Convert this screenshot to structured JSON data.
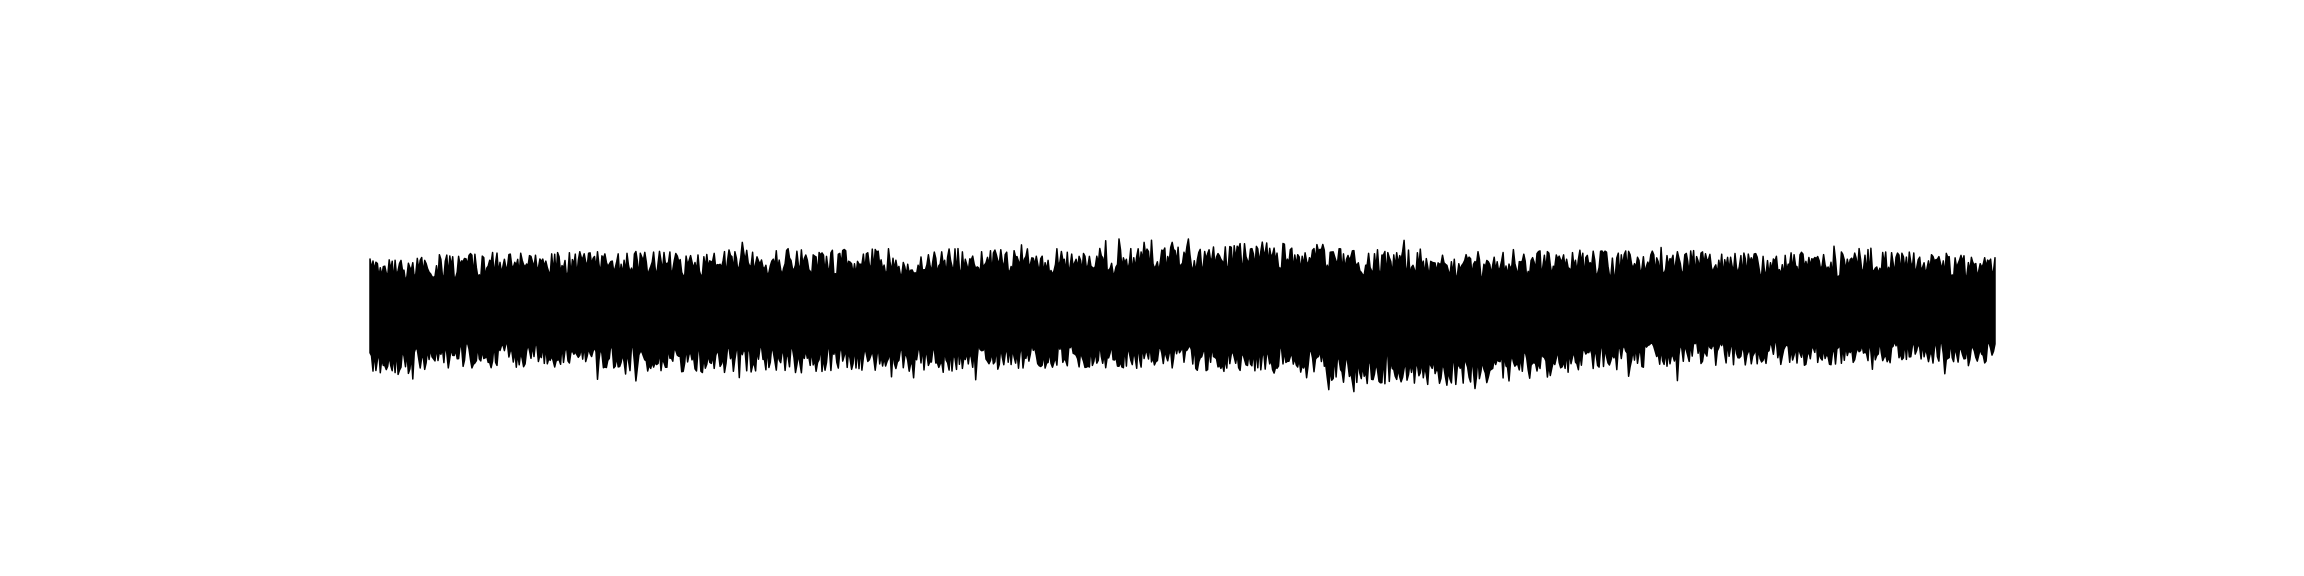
{
  "chart_data": {
    "type": "area",
    "title": "",
    "xlabel": "",
    "ylabel": "",
    "axes_visible": false,
    "grid": false,
    "legend": "none",
    "series": [
      {
        "kind": "envelope",
        "color": "#000000",
        "fill": "#000000",
        "x": [
          0,
          5,
          10,
          15,
          20,
          25,
          30,
          35,
          40,
          45,
          50,
          55,
          60,
          65,
          70,
          75,
          80,
          85,
          90,
          95,
          100
        ],
        "upper": [
          0.64,
          0.71,
          0.72,
          0.73,
          0.74,
          0.76,
          0.76,
          0.77,
          0.76,
          0.77,
          0.79,
          0.85,
          0.81,
          0.77,
          0.76,
          0.74,
          0.74,
          0.73,
          0.72,
          0.73,
          0.66
        ],
        "lower": [
          -0.92,
          -0.8,
          -0.78,
          -0.82,
          -0.85,
          -0.86,
          -0.84,
          -0.85,
          -0.8,
          -0.8,
          -0.82,
          -0.86,
          -0.98,
          -1.05,
          -0.98,
          -0.84,
          -0.78,
          -0.75,
          -0.76,
          -0.72,
          -0.78
        ]
      }
    ],
    "xlim": [
      0,
      100
    ],
    "ylim": [
      -3.5,
      4.0
    ]
  }
}
